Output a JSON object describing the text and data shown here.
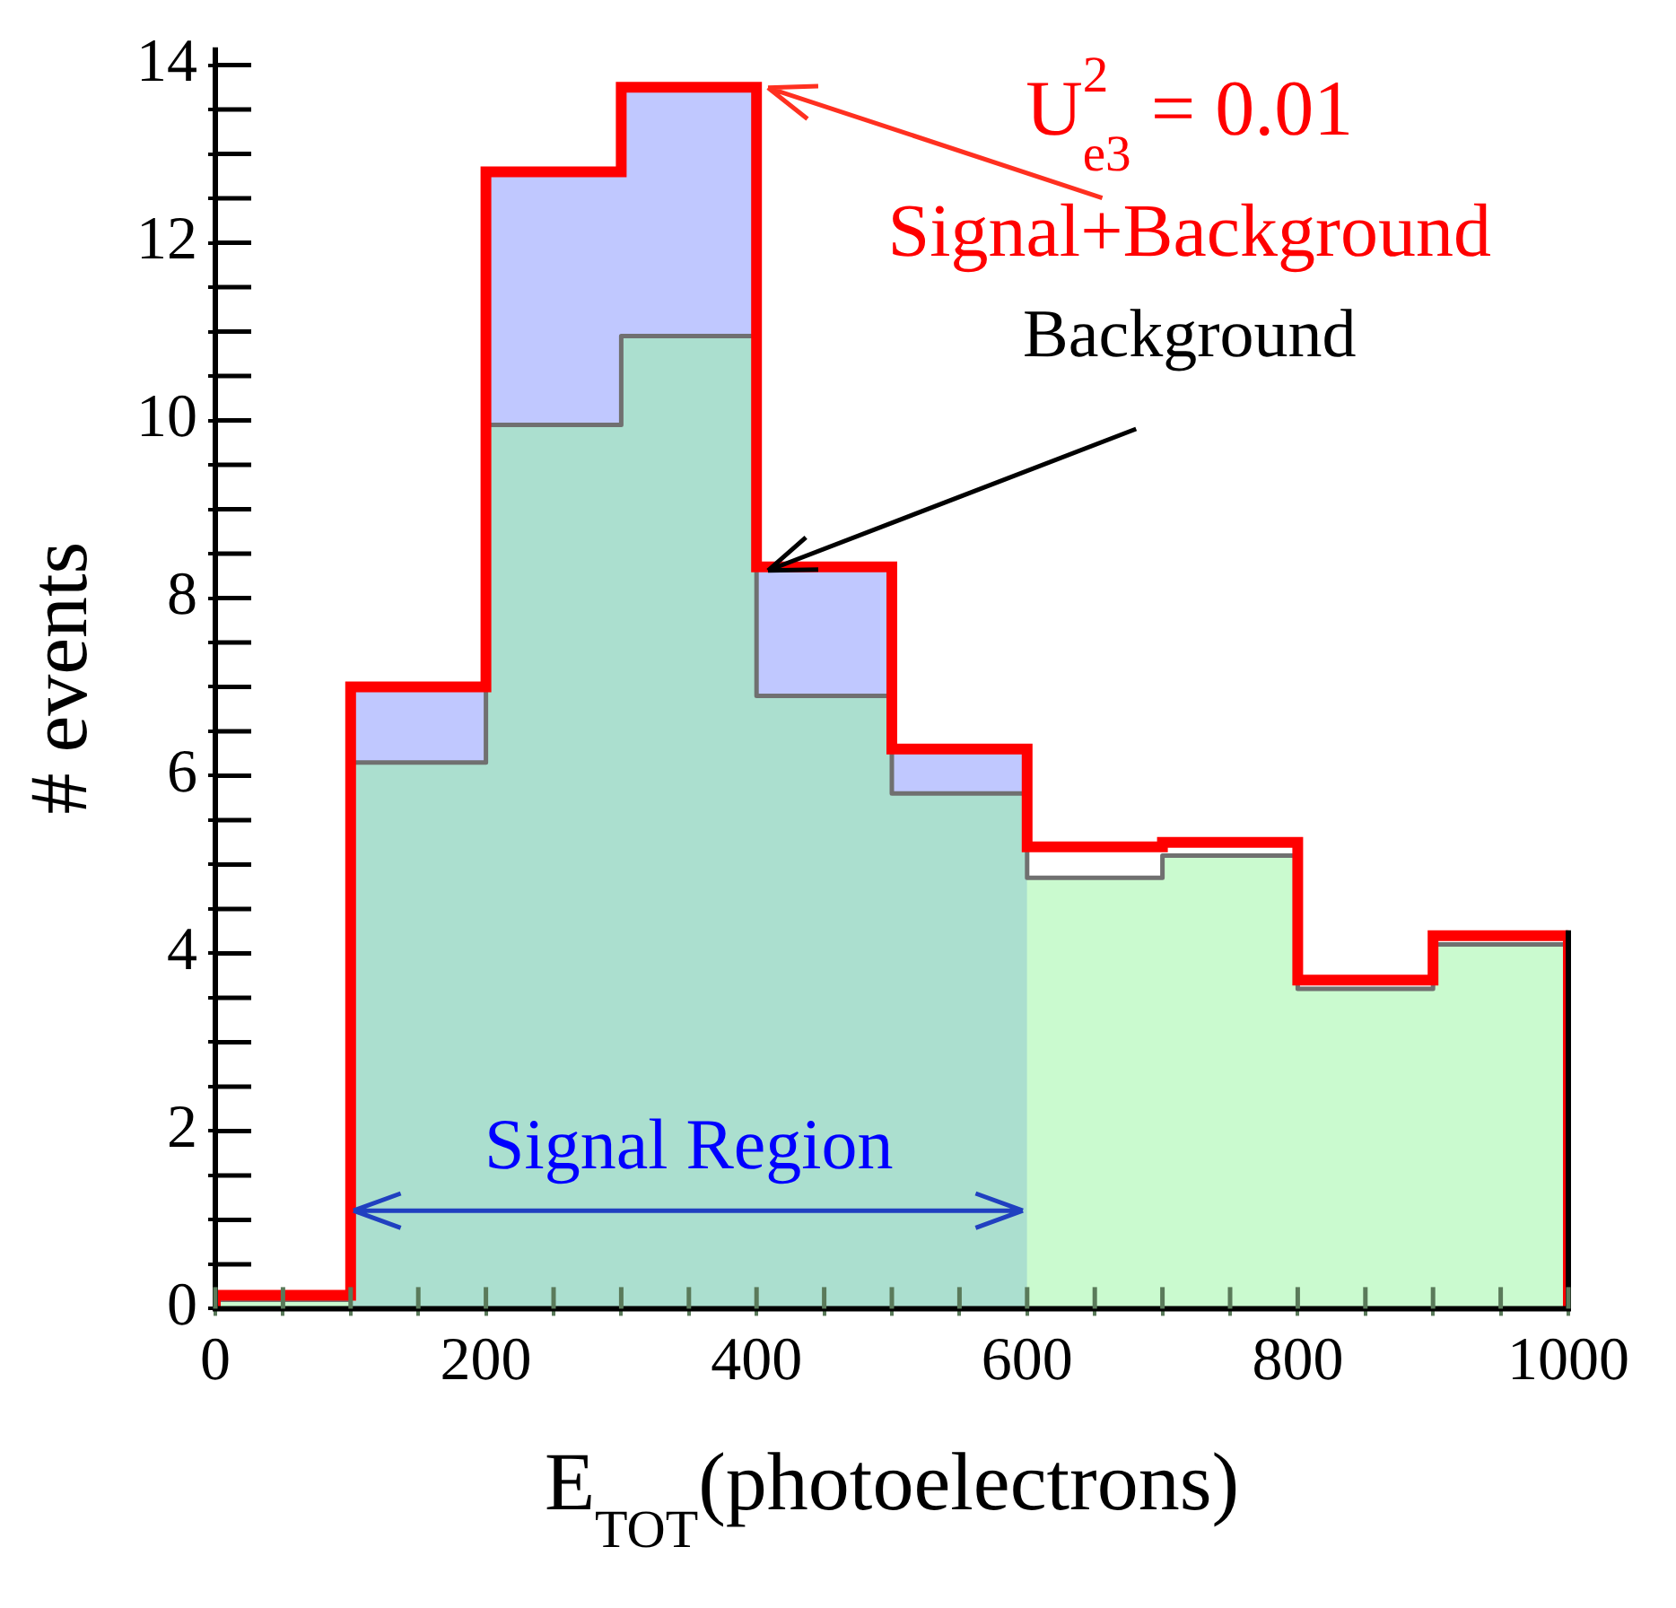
{
  "chart_data": {
    "type": "histogram",
    "xlabel": "E$_{TOT}$(photoelectrons)",
    "ylabel": "# events",
    "bins": [
      0,
      100,
      200,
      300,
      400,
      500,
      600,
      700,
      800,
      900,
      1000
    ],
    "series": [
      {
        "name": "Signal+Background",
        "color": "#ff0000",
        "values": [
          0.15,
          7.0,
          12.8,
          13.75,
          8.35,
          6.3,
          5.2,
          5.25,
          3.7,
          4.2
        ]
      },
      {
        "name": "Background",
        "color": "#96f5a0",
        "values": [
          0.1,
          6.15,
          9.95,
          10.95,
          6.9,
          5.8,
          4.85,
          5.1,
          3.6,
          4.1
        ]
      },
      {
        "color": "#c0c8ff",
        "bins": [
          100,
          200,
          300,
          400,
          500,
          600
        ],
        "values": [
          7.0,
          12.8,
          13.75,
          8.35,
          6.3
        ]
      }
    ],
    "xlim": [
      0,
      1000
    ],
    "ylim": [
      0,
      14.2
    ],
    "xticks": [
      0,
      {
        "value": 50,
        "label": null
      },
      {
        "value": 100,
        "label": null
      },
      {
        "value": 150,
        "label": null
      },
      200,
      {
        "value": 250,
        "label": null
      },
      {
        "value": 300,
        "label": null
      },
      {
        "value": 350,
        "label": null
      },
      400,
      {
        "value": 450,
        "label": null
      },
      {
        "value": 500,
        "label": null
      },
      {
        "value": 550,
        "label": null
      },
      600,
      {
        "value": 650,
        "label": null
      },
      {
        "value": 700,
        "label": null
      },
      {
        "value": 750,
        "label": null
      },
      800,
      {
        "value": 850,
        "label": null
      },
      {
        "value": 900,
        "label": null
      },
      {
        "value": 950,
        "label": null
      },
      1000
    ],
    "yticks": [
      0,
      {
        "value": 0.5,
        "label": null
      },
      {
        "value": 1,
        "label": null
      },
      {
        "value": 1.5,
        "label": null
      },
      2,
      {
        "value": 2.5,
        "label": null
      },
      {
        "value": 3,
        "label": null
      },
      {
        "value": 3.5,
        "label": null
      },
      4,
      {
        "value": 4.5,
        "label": null
      },
      {
        "value": 5,
        "label": null
      },
      {
        "value": 5.5,
        "label": null
      },
      6,
      {
        "value": 6.5,
        "label": null
      },
      {
        "value": 7,
        "label": null
      },
      {
        "value": 7.5,
        "label": null
      },
      8,
      {
        "value": 8.5,
        "label": null
      },
      {
        "value": 9,
        "label": null
      },
      {
        "value": 9.5,
        "label": null
      },
      10,
      {
        "value": 10.5,
        "label": null
      },
      {
        "value": 11,
        "label": null
      },
      {
        "value": 11.5,
        "label": null
      },
      12,
      {
        "value": 12.5,
        "label": null
      },
      {
        "value": 13,
        "label": null
      },
      {
        "value": 13.5,
        "label": null
      },
      14
    ],
    "annotations": [
      {
        "text": "U$_{e3}$$^{2}$ = 0.01",
        "x": 400,
        "y": 13.75
      },
      "Signal Region"
    ],
    "grid": false,
    "legend": false
  }
}
